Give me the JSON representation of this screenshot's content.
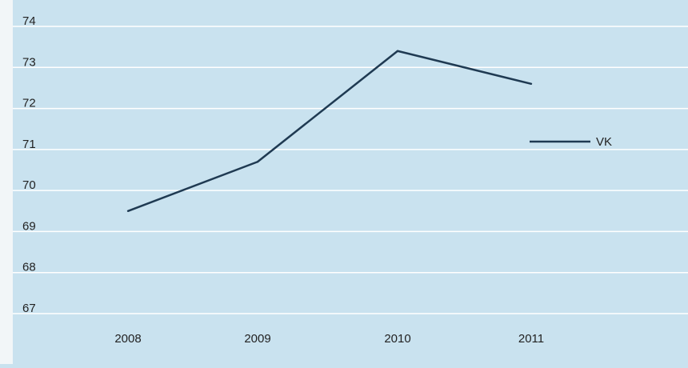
{
  "chart_data": {
    "type": "line",
    "categories": [
      "2008",
      "2009",
      "2010",
      "2011"
    ],
    "series": [
      {
        "name": "VK",
        "values": [
          69.5,
          70.7,
          73.4,
          72.6
        ]
      }
    ],
    "yticks": [
      "67",
      "68",
      "69",
      "70",
      "71",
      "72",
      "73",
      "74"
    ],
    "ylim": [
      67,
      74
    ],
    "grid": true,
    "legend_position": "right",
    "title": "",
    "xlabel": "",
    "ylabel": ""
  },
  "colors": {
    "background": "#c9e2ef",
    "line": "#1f3a52",
    "grid": "#ffffff"
  }
}
